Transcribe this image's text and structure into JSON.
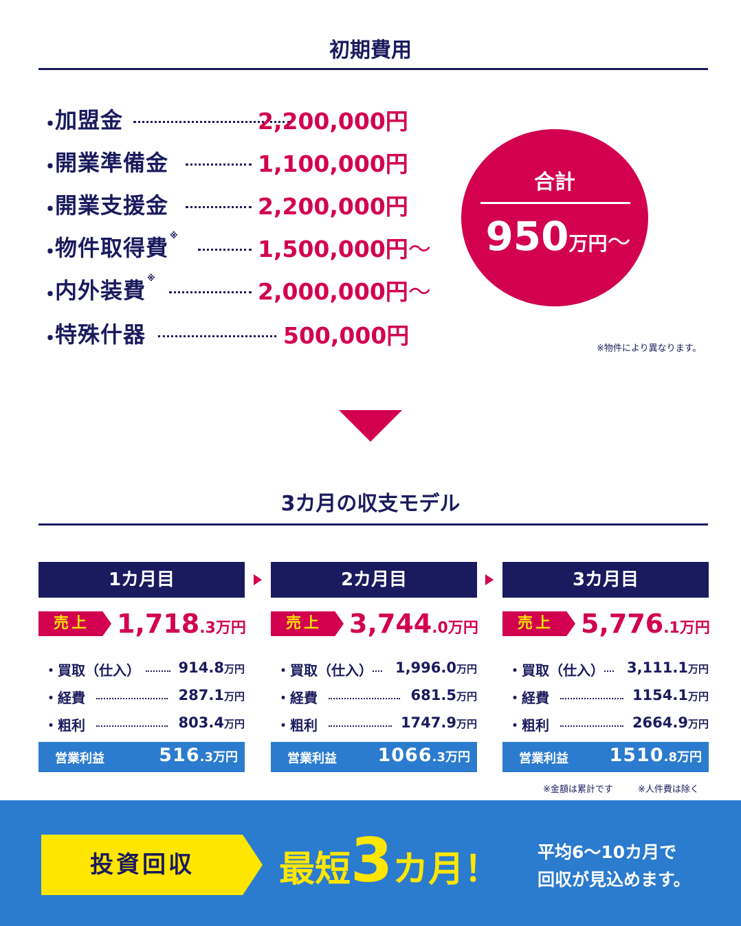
{
  "initial_cost": {
    "title": "初期費用",
    "bullet": "・",
    "items": [
      {
        "label": "加盟金",
        "note": "",
        "value": "2,200,000円",
        "tilde": ""
      },
      {
        "label": "開業準備金",
        "note": "",
        "value": "1,100,000円",
        "tilde": ""
      },
      {
        "label": "開業支援金",
        "note": "",
        "value": "2,200,000円",
        "tilde": ""
      },
      {
        "label": "物件取得費",
        "note": "※",
        "value": "1,500,000円",
        "tilde": "〜"
      },
      {
        "label": "内外装費",
        "note": "※",
        "value": "2,000,000円",
        "tilde": "〜"
      },
      {
        "label": "特殊什器",
        "note": "",
        "value": "500,000円",
        "tilde": ""
      }
    ],
    "total": {
      "label": "合計",
      "number": "950",
      "unit": "万円",
      "tilde": "〜"
    },
    "footnote": "※物件により異なります。"
  },
  "model": {
    "title": "3カ月の収支モデル",
    "sales_label": "売上",
    "profit_label": "営業利益",
    "months": [
      {
        "header": "1カ月目",
        "sales_int": "1,718",
        "sales_dec": ".3",
        "sales_unit": "万円",
        "details": [
          {
            "label": "・買取（仕入）",
            "value": "914.8",
            "unit": "万円"
          },
          {
            "label": "・経費",
            "value": "287.1",
            "unit": "万円"
          },
          {
            "label": "・粗利",
            "value": "803.4",
            "unit": "万円"
          }
        ],
        "profit_int": "516",
        "profit_dec": ".3",
        "profit_unit": "万円"
      },
      {
        "header": "2カ月目",
        "sales_int": "3,744",
        "sales_dec": ".0",
        "sales_unit": "万円",
        "details": [
          {
            "label": "・買取（仕入）",
            "value": "1,996.0",
            "unit": "万円"
          },
          {
            "label": "・経費",
            "value": "681.5",
            "unit": "万円"
          },
          {
            "label": "・粗利",
            "value": "1747.9",
            "unit": "万円"
          }
        ],
        "profit_int": "1066",
        "profit_dec": ".3",
        "profit_unit": "万円"
      },
      {
        "header": "3カ月目",
        "sales_int": "5,776",
        "sales_dec": ".1",
        "sales_unit": "万円",
        "details": [
          {
            "label": "・買取（仕入）",
            "value": "3,111.1",
            "unit": "万円"
          },
          {
            "label": "・経費",
            "value": "1154.1",
            "unit": "万円"
          },
          {
            "label": "・粗利",
            "value": "2664.9",
            "unit": "万円"
          }
        ],
        "profit_int": "1510",
        "profit_dec": ".8",
        "profit_unit": "万円"
      }
    ],
    "footnote_1": "※金額は累計です",
    "footnote_2": "※人件費は除く"
  },
  "banner": {
    "tag": "投資回収",
    "headline_a": "最短",
    "headline_num": "3",
    "headline_b": "カ月！",
    "sub_line_1": "平均6〜10カ月で",
    "sub_line_2": "回収が見込めます。"
  },
  "colors": {
    "navy": "#1a1a5e",
    "accent": "#d2004f",
    "blue": "#2b7bce",
    "yellow": "#ffe600"
  }
}
